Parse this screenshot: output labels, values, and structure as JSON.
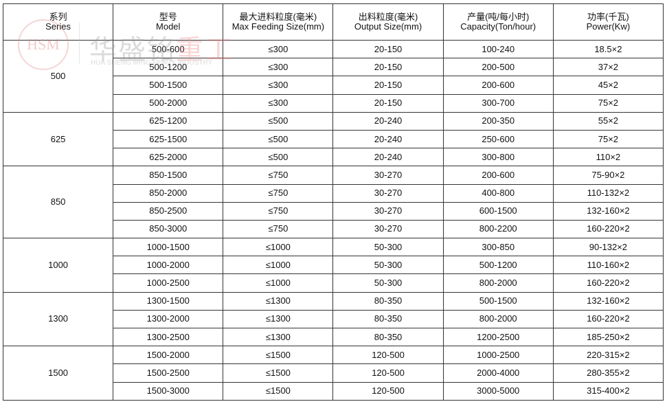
{
  "watermark": {
    "logo": "HSM",
    "cn_main": "华盛铭",
    "cn_accent": "重工",
    "en": "HUA SHENG MING HEAVY INDUSTRY"
  },
  "headers": [
    {
      "cn": "系列",
      "en": "Series"
    },
    {
      "cn": "型号",
      "en": "Model"
    },
    {
      "cn": "最大进料粒度(毫米)",
      "en": "Max Feeding Size(mm)"
    },
    {
      "cn": "出料粒度(毫米)",
      "en": "Output Size(mm)"
    },
    {
      "cn": "产量(吨/每小时)",
      "en": "Capacity(Ton/hour)"
    },
    {
      "cn": "功率(千瓦)",
      "en": "Power(Kw)"
    }
  ],
  "groups": [
    {
      "series": "500",
      "rows": [
        [
          "500-600",
          "≤300",
          "20-150",
          "100-240",
          "18.5×2"
        ],
        [
          "500-1200",
          "≤300",
          "20-150",
          "200-500",
          "37×2"
        ],
        [
          "500-1500",
          "≤300",
          "20-150",
          "200-600",
          "45×2"
        ],
        [
          "500-2000",
          "≤300",
          "20-150",
          "300-700",
          "75×2"
        ]
      ]
    },
    {
      "series": "625",
      "rows": [
        [
          "625-1200",
          "≤500",
          "20-240",
          "200-350",
          "55×2"
        ],
        [
          "625-1500",
          "≤500",
          "20-240",
          "250-600",
          "75×2"
        ],
        [
          "625-2000",
          "≤500",
          "20-240",
          "300-800",
          "110×2"
        ]
      ]
    },
    {
      "series": "850",
      "rows": [
        [
          "850-1500",
          "≤750",
          "30-270",
          "200-600",
          "75-90×2"
        ],
        [
          "850-2000",
          "≤750",
          "30-270",
          "400-800",
          "110-132×2"
        ],
        [
          "850-2500",
          "≤750",
          "30-270",
          "600-1500",
          "132-160×2"
        ],
        [
          "850-3000",
          "≤750",
          "30-270",
          "800-2200",
          "160-220×2"
        ]
      ]
    },
    {
      "series": "1000",
      "rows": [
        [
          "1000-1500",
          "≤1000",
          "50-300",
          "300-850",
          "90-132×2"
        ],
        [
          "1000-2000",
          "≤1000",
          "50-300",
          "500-1200",
          "110-160×2"
        ],
        [
          "1000-2500",
          "≤1000",
          "50-300",
          "800-2000",
          "160-220×2"
        ]
      ]
    },
    {
      "series": "1300",
      "rows": [
        [
          "1300-1500",
          "≤1300",
          "80-350",
          "500-1500",
          "132-160×2"
        ],
        [
          "1300-2000",
          "≤1300",
          "80-350",
          "800-2000",
          "160-220×2"
        ],
        [
          "1300-2500",
          "≤1300",
          "80-350",
          "1200-2500",
          "185-250×2"
        ]
      ]
    },
    {
      "series": "1500",
      "rows": [
        [
          "1500-2000",
          "≤1500",
          "120-500",
          "1000-2500",
          "220-315×2"
        ],
        [
          "1500-2500",
          "≤1500",
          "120-500",
          "2000-4000",
          "280-355×2"
        ],
        [
          "1500-3000",
          "≤1500",
          "120-500",
          "3000-5000",
          "315-400×2"
        ]
      ]
    }
  ]
}
